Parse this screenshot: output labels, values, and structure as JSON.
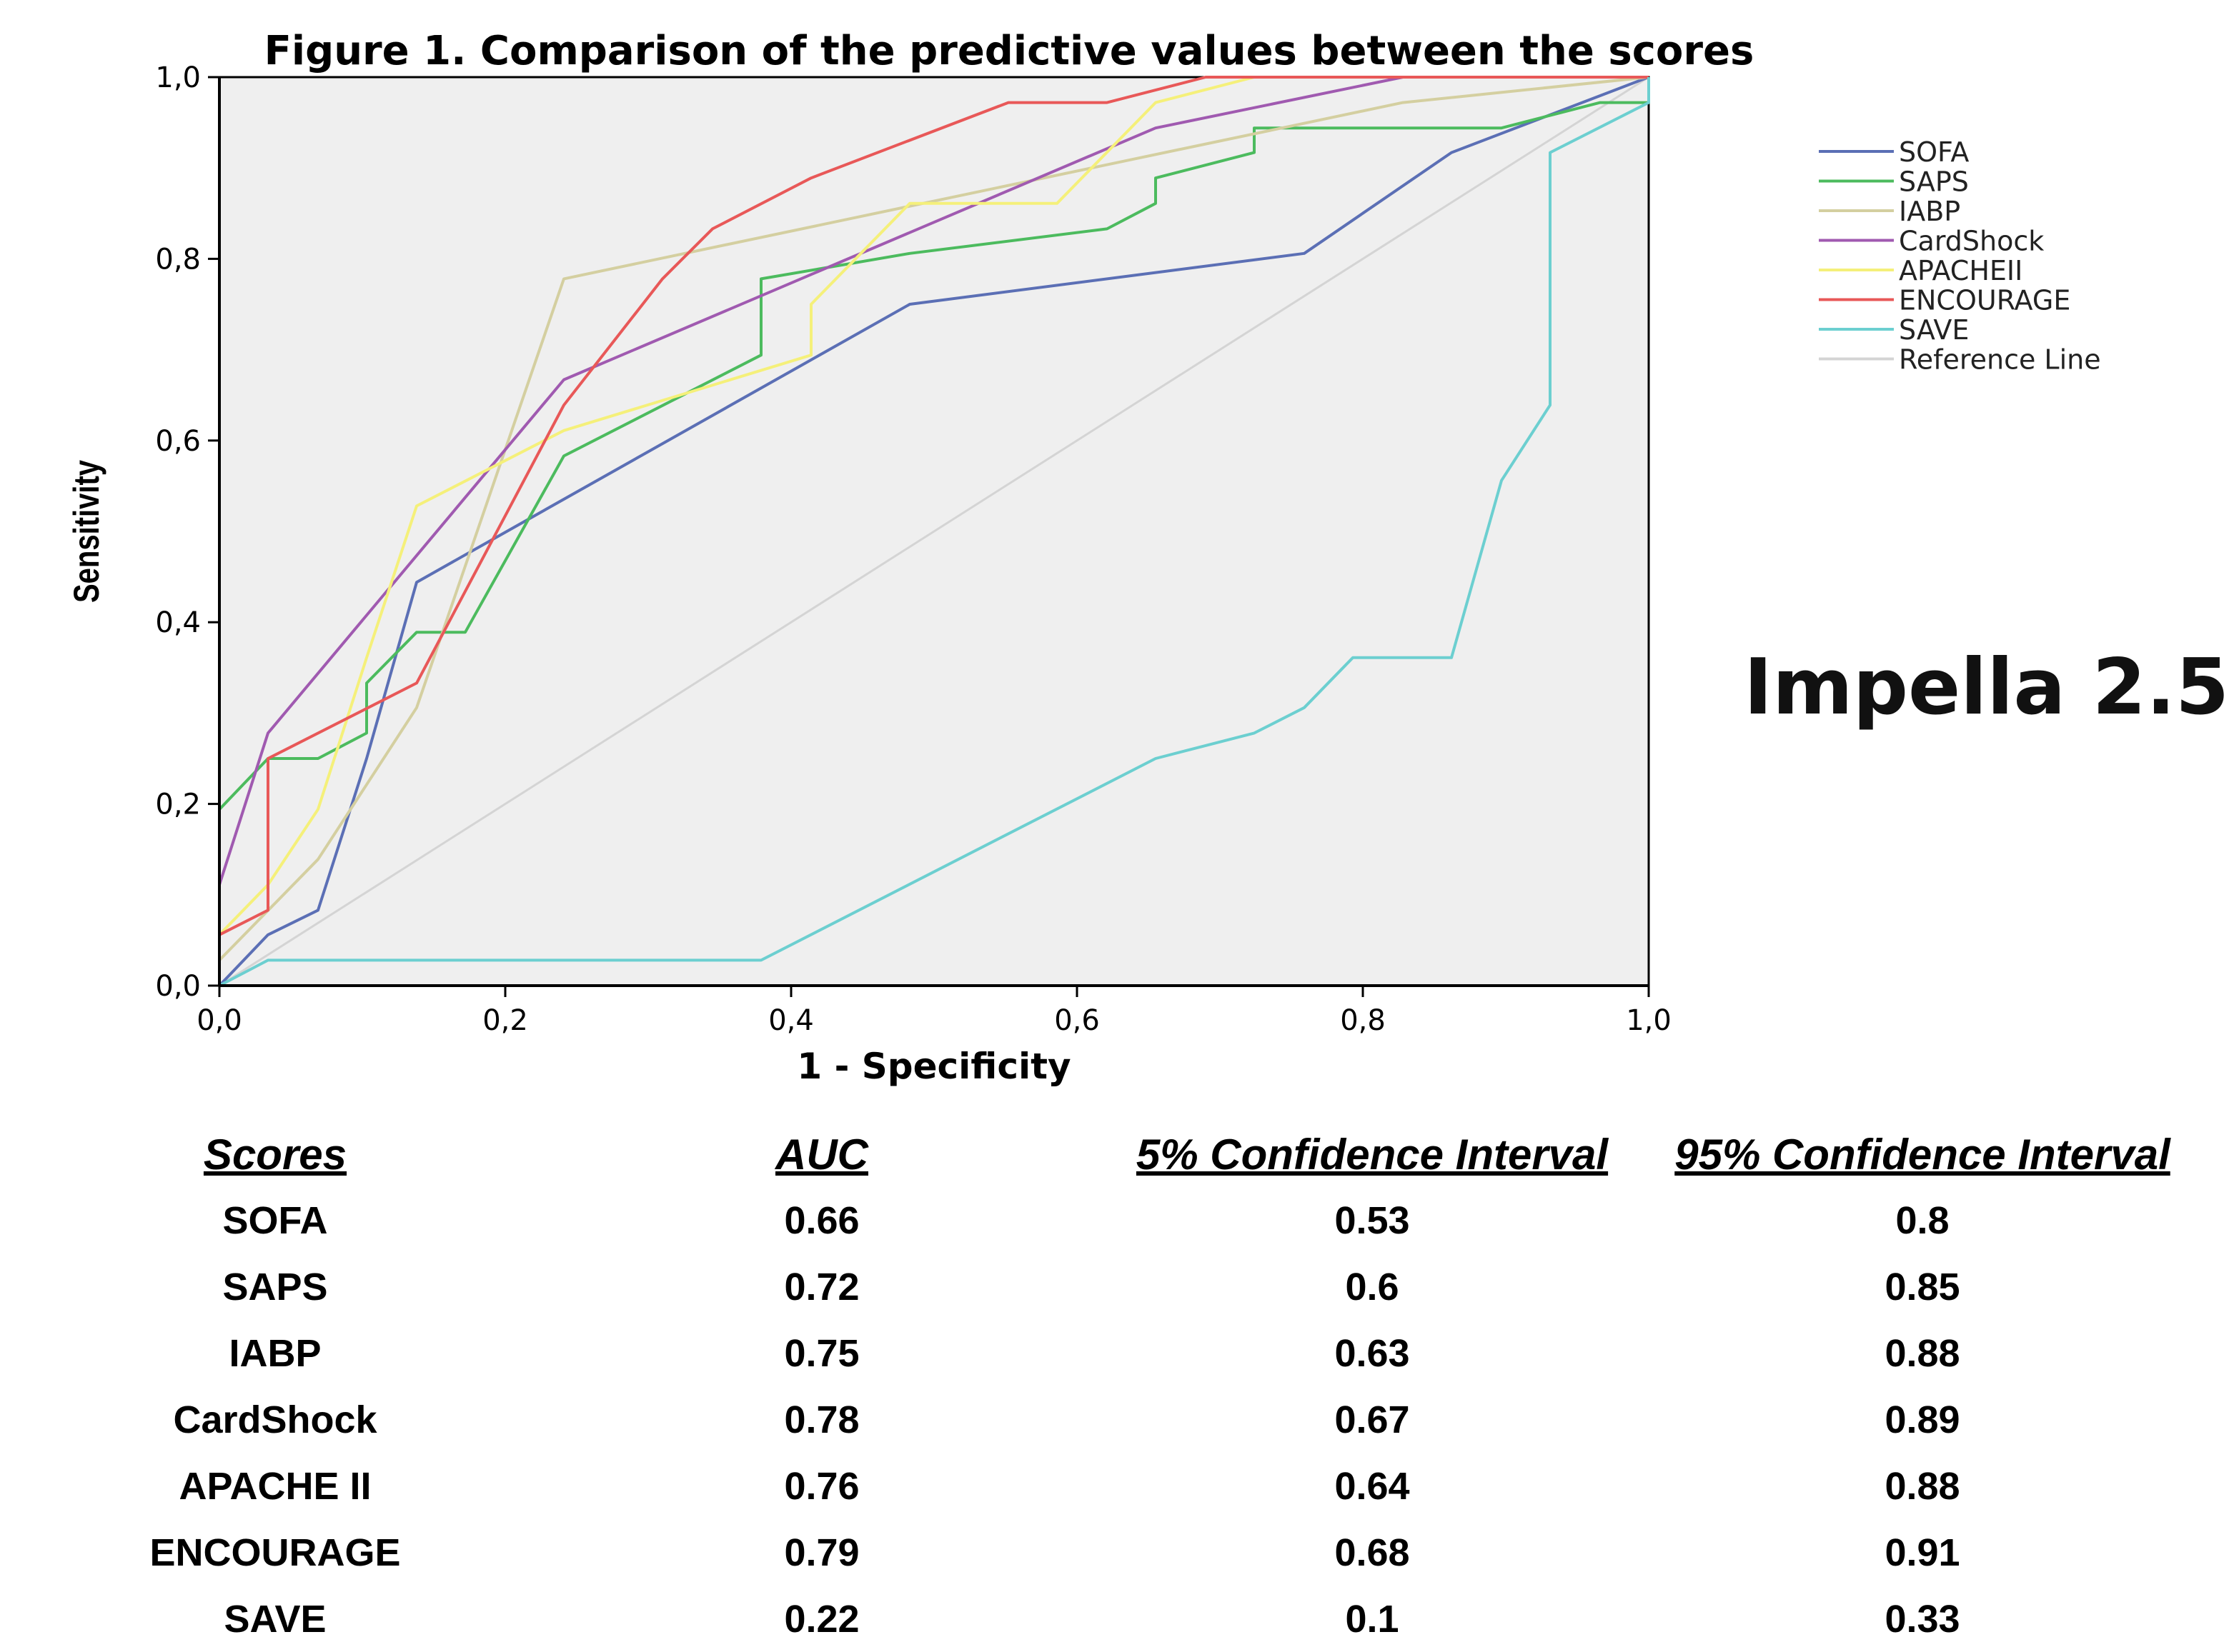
{
  "chart_data": {
    "type": "line",
    "title": "Figure 1. Comparison of the predictive values  between the scores",
    "xlabel": "1 - Specificity",
    "ylabel": "Sensitivity",
    "xlim": [
      0,
      1
    ],
    "ylim": [
      0,
      1
    ],
    "x_ticks": [
      "0,0",
      "0,2",
      "0,4",
      "0,6",
      "0,8",
      "1,0"
    ],
    "y_ticks": [
      "0,0",
      "0,2",
      "0,4",
      "0,6",
      "0,8",
      "1,0"
    ],
    "grid": false,
    "legend_position": "right",
    "series": [
      {
        "name": "SOFA",
        "color": "#5b6fb5",
        "points": [
          [
            0,
            0
          ],
          [
            0.034,
            0.056
          ],
          [
            0.069,
            0.083
          ],
          [
            0.103,
            0.25
          ],
          [
            0.138,
            0.444
          ],
          [
            0.483,
            0.75
          ],
          [
            0.759,
            0.806
          ],
          [
            0.862,
            0.917
          ],
          [
            1,
            1
          ]
        ]
      },
      {
        "name": "SAPS",
        "color": "#4cbb5e",
        "points": [
          [
            0,
            0.194
          ],
          [
            0.034,
            0.25
          ],
          [
            0.069,
            0.25
          ],
          [
            0.103,
            0.278
          ],
          [
            0.103,
            0.333
          ],
          [
            0.138,
            0.389
          ],
          [
            0.172,
            0.389
          ],
          [
            0.241,
            0.583
          ],
          [
            0.379,
            0.694
          ],
          [
            0.379,
            0.778
          ],
          [
            0.483,
            0.806
          ],
          [
            0.621,
            0.833
          ],
          [
            0.655,
            0.861
          ],
          [
            0.655,
            0.889
          ],
          [
            0.724,
            0.917
          ],
          [
            0.724,
            0.944
          ],
          [
            0.897,
            0.944
          ],
          [
            0.966,
            0.972
          ],
          [
            1,
            0.972
          ],
          [
            1,
            1
          ]
        ]
      },
      {
        "name": "IABP",
        "color": "#d4cfa0",
        "points": [
          [
            0,
            0.028
          ],
          [
            0.069,
            0.139
          ],
          [
            0.138,
            0.306
          ],
          [
            0.241,
            0.778
          ],
          [
            0.828,
            0.972
          ],
          [
            1,
            1
          ]
        ]
      },
      {
        "name": "CardShock",
        "color": "#a05ab0",
        "points": [
          [
            0,
            0.111
          ],
          [
            0.034,
            0.278
          ],
          [
            0.241,
            0.667
          ],
          [
            0.655,
            0.944
          ],
          [
            0.828,
            1
          ],
          [
            1,
            1
          ]
        ]
      },
      {
        "name": "APACHEII",
        "color": "#f5f07a",
        "points": [
          [
            0,
            0.056
          ],
          [
            0.034,
            0.111
          ],
          [
            0.069,
            0.194
          ],
          [
            0.103,
            0.361
          ],
          [
            0.138,
            0.528
          ],
          [
            0.241,
            0.611
          ],
          [
            0.414,
            0.694
          ],
          [
            0.414,
            0.75
          ],
          [
            0.483,
            0.861
          ],
          [
            0.586,
            0.861
          ],
          [
            0.655,
            0.972
          ],
          [
            0.724,
            1
          ],
          [
            1,
            1
          ]
        ]
      },
      {
        "name": "ENCOURAGE",
        "color": "#e85858",
        "points": [
          [
            0,
            0.056
          ],
          [
            0.034,
            0.083
          ],
          [
            0.034,
            0.25
          ],
          [
            0.138,
            0.333
          ],
          [
            0.241,
            0.639
          ],
          [
            0.31,
            0.778
          ],
          [
            0.345,
            0.833
          ],
          [
            0.414,
            0.889
          ],
          [
            0.552,
            0.972
          ],
          [
            0.621,
            0.972
          ],
          [
            0.69,
            1
          ],
          [
            1,
            1
          ]
        ]
      },
      {
        "name": "SAVE",
        "color": "#6ccfd0",
        "points": [
          [
            0,
            0
          ],
          [
            0.034,
            0.028
          ],
          [
            0.379,
            0.028
          ],
          [
            0.655,
            0.25
          ],
          [
            0.724,
            0.278
          ],
          [
            0.759,
            0.306
          ],
          [
            0.793,
            0.361
          ],
          [
            0.862,
            0.361
          ],
          [
            0.897,
            0.556
          ],
          [
            0.931,
            0.639
          ],
          [
            0.931,
            0.917
          ],
          [
            1,
            0.972
          ],
          [
            1,
            1
          ]
        ]
      },
      {
        "name": "Reference Line",
        "color": "#d4d4d4",
        "points": [
          [
            0,
            0
          ],
          [
            1,
            1
          ]
        ]
      }
    ]
  },
  "annotation": "Impella 2.5",
  "table": {
    "headers": [
      "Scores",
      "AUC",
      "5% Confidence Interval",
      "95% Confidence Interval"
    ],
    "rows": [
      [
        "SOFA",
        "0.66",
        "0.53",
        "0.8"
      ],
      [
        "SAPS",
        "0.72",
        "0.6",
        "0.85"
      ],
      [
        "IABP",
        "0.75",
        "0.63",
        "0.88"
      ],
      [
        "CardShock",
        "0.78",
        "0.67",
        "0.89"
      ],
      [
        "APACHE II",
        "0.76",
        "0.64",
        "0.88"
      ],
      [
        "ENCOURAGE",
        "0.79",
        "0.68",
        "0.91"
      ],
      [
        "SAVE",
        "0.22",
        "0.1",
        "0.33"
      ]
    ]
  }
}
